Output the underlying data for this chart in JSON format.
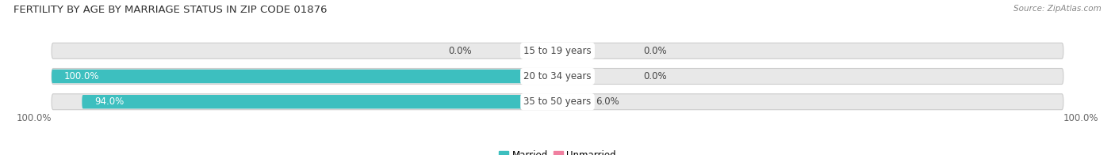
{
  "title": "FERTILITY BY AGE BY MARRIAGE STATUS IN ZIP CODE 01876",
  "source": "Source: ZipAtlas.com",
  "categories": [
    "15 to 19 years",
    "20 to 34 years",
    "35 to 50 years"
  ],
  "married_values": [
    0.0,
    100.0,
    94.0
  ],
  "unmarried_values": [
    0.0,
    0.0,
    6.0
  ],
  "married_color": "#3DBFBF",
  "unmarried_color": "#F080A0",
  "bar_bg_color": "#E8E8E8",
  "bar_bg_border": "#CCCCCC",
  "title_fontsize": 9.5,
  "label_fontsize": 8.5,
  "legend_fontsize": 8.5,
  "source_fontsize": 7.5,
  "axis_label_left": "100.0%",
  "axis_label_right": "100.0%"
}
